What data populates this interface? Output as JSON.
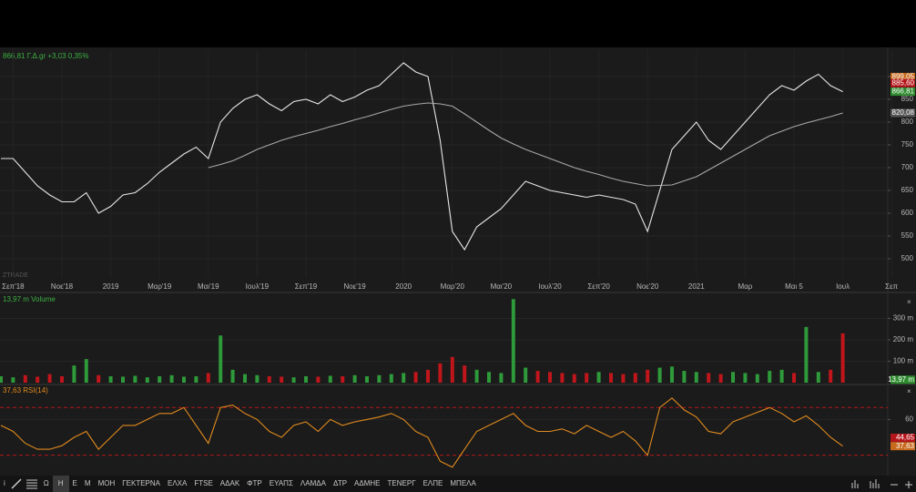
{
  "chart_data": [
    {
      "type": "line",
      "title": "866,81 Γ.Δ.gr +3,03 0,35%",
      "watermark": "ZTRADE",
      "categories": [
        null,
        "Σεπ'18",
        null,
        null,
        null,
        "Νοε'18",
        null,
        null,
        null,
        "2019",
        null,
        null,
        null,
        "Μαρ'19",
        null,
        null,
        null,
        "Μαι'19",
        null,
        null,
        null,
        "Ιουλ'19",
        null,
        null,
        null,
        "Σεπ'19",
        null,
        null,
        null,
        "Νοε'19",
        null,
        null,
        null,
        "2020",
        null,
        null,
        null,
        "Μαρ'20",
        null,
        null,
        null,
        "Μαι'20",
        null,
        null,
        null,
        "Ιουλ'20",
        null,
        null,
        null,
        "Σεπ'20",
        null,
        null,
        null,
        "Νοε'20",
        null,
        null,
        null,
        "2021",
        null,
        null,
        null,
        "Μαρ",
        null,
        null,
        null,
        "Μαι 5",
        null,
        null,
        null,
        "Ιουλ",
        null,
        null,
        null,
        "Σεπ"
      ],
      "series": [
        {
          "color": "#e6e6e6",
          "values": [
            720,
            720,
            690,
            660,
            640,
            625,
            625,
            645,
            600,
            615,
            640,
            645,
            665,
            690,
            710,
            730,
            745,
            720,
            800,
            830,
            850,
            860,
            840,
            825,
            845,
            850,
            840,
            860,
            845,
            855,
            870,
            880,
            905,
            930,
            910,
            900,
            760,
            560,
            520,
            570,
            590,
            610,
            640,
            670,
            660,
            650,
            645,
            640,
            635,
            640,
            635,
            630,
            620,
            560,
            650,
            740,
            770,
            800,
            760,
            740,
            770,
            800,
            830,
            860,
            880,
            870,
            890,
            905,
            880,
            866.81,
            null,
            null,
            null,
            null
          ]
        },
        {
          "color": "#a8a8a8",
          "values": [
            null,
            null,
            null,
            null,
            null,
            null,
            null,
            null,
            null,
            null,
            null,
            null,
            null,
            null,
            null,
            null,
            null,
            700,
            707,
            715,
            727,
            740,
            750,
            760,
            768,
            775,
            782,
            790,
            797,
            805,
            812,
            820,
            828,
            835,
            839,
            842,
            840,
            835,
            818,
            800,
            782,
            765,
            752,
            740,
            730,
            720,
            710,
            700,
            692,
            685,
            677,
            670,
            665,
            660,
            661,
            662,
            671,
            680,
            695,
            710,
            725,
            740,
            755,
            770,
            780,
            790,
            798,
            805,
            812,
            820.08,
            null,
            null,
            null,
            null
          ]
        }
      ],
      "ylim": [
        458,
        958
      ],
      "yticks": [
        500,
        550,
        600,
        650,
        700,
        750,
        800,
        850,
        900
      ],
      "grid": true,
      "tags": [
        {
          "value": 899.05,
          "label": "899,05",
          "color": "#c86a1e"
        },
        {
          "value": 885.6,
          "label": "885,60",
          "color": "#b5161b"
        },
        {
          "value": 866.81,
          "label": "866,81",
          "color": "#2e8b2e"
        },
        {
          "value": 820.08,
          "label": "820,08",
          "color": "#555555"
        }
      ]
    },
    {
      "type": "bar",
      "title": "13,97 m Volume",
      "values": [
        30,
        25,
        35,
        28,
        40,
        30,
        80,
        110,
        35,
        30,
        28,
        32,
        25,
        30,
        35,
        28,
        30,
        45,
        220,
        60,
        40,
        35,
        30,
        28,
        25,
        30,
        28,
        32,
        30,
        35,
        30,
        35,
        40,
        45,
        50,
        60,
        90,
        120,
        80,
        60,
        50,
        45,
        390,
        70,
        55,
        50,
        45,
        40,
        45,
        50,
        45,
        40,
        45,
        60,
        70,
        75,
        55,
        50,
        45,
        40,
        50,
        45,
        40,
        55,
        60,
        45,
        260,
        50,
        60,
        230,
        null,
        null,
        null,
        null
      ],
      "colors": {
        "up": "#2f9a3a",
        "down": "#c0161b"
      },
      "ylim": [
        0,
        404
      ],
      "yticks": [
        {
          "value": 100,
          "label": "100 m"
        },
        {
          "value": 200,
          "label": "200 m"
        },
        {
          "value": 300,
          "label": "300 m"
        }
      ],
      "grid": true,
      "tags": [
        {
          "value": 13.97,
          "label": "13,97 m",
          "color": "#2e8b2e"
        }
      ]
    },
    {
      "type": "line",
      "title": "37,63 RSI(14)",
      "series": [
        {
          "color": "#e08a1e",
          "values": [
            55,
            50,
            40,
            35,
            35,
            38,
            45,
            50,
            35,
            45,
            55,
            55,
            60,
            65,
            65,
            70,
            55,
            40,
            70,
            72,
            65,
            60,
            50,
            45,
            55,
            58,
            50,
            60,
            55,
            58,
            60,
            62,
            65,
            60,
            50,
            45,
            25,
            20,
            35,
            50,
            55,
            60,
            65,
            55,
            50,
            50,
            52,
            48,
            55,
            50,
            45,
            50,
            42,
            30,
            70,
            78,
            68,
            62,
            50,
            48,
            58,
            62,
            66,
            70,
            65,
            58,
            63,
            55,
            45,
            37.63,
            null,
            null,
            null,
            null
          ]
        }
      ],
      "levels": [
        70,
        30
      ],
      "ylim": [
        16,
        87
      ],
      "yticks": [
        60
      ],
      "grid": true,
      "tags": [
        {
          "value": 44.65,
          "label": "44,65",
          "color": "#b5161b"
        },
        {
          "value": 37.63,
          "label": "37,63",
          "color": "#c86a1e"
        }
      ]
    }
  ],
  "toolbar": {
    "left": [
      "i"
    ],
    "items": [
      "Ω",
      "Η",
      "Ε",
      "Μ",
      "ΜΟΗ",
      "ΓΕΚΤΕΡΝΑ",
      "ΕΛΧΑ",
      "FTSE",
      "ΑΔΑΚ",
      "ΦΤΡ",
      "ΕΥΑΠΣ",
      "ΛΑΜΔΑ",
      "ΔΤΡ",
      "ΑΔΜΗΕ",
      "ΤΕΝΕΡΓ",
      "ΕΛΠΕ",
      "ΜΠΕΛΑ"
    ]
  }
}
